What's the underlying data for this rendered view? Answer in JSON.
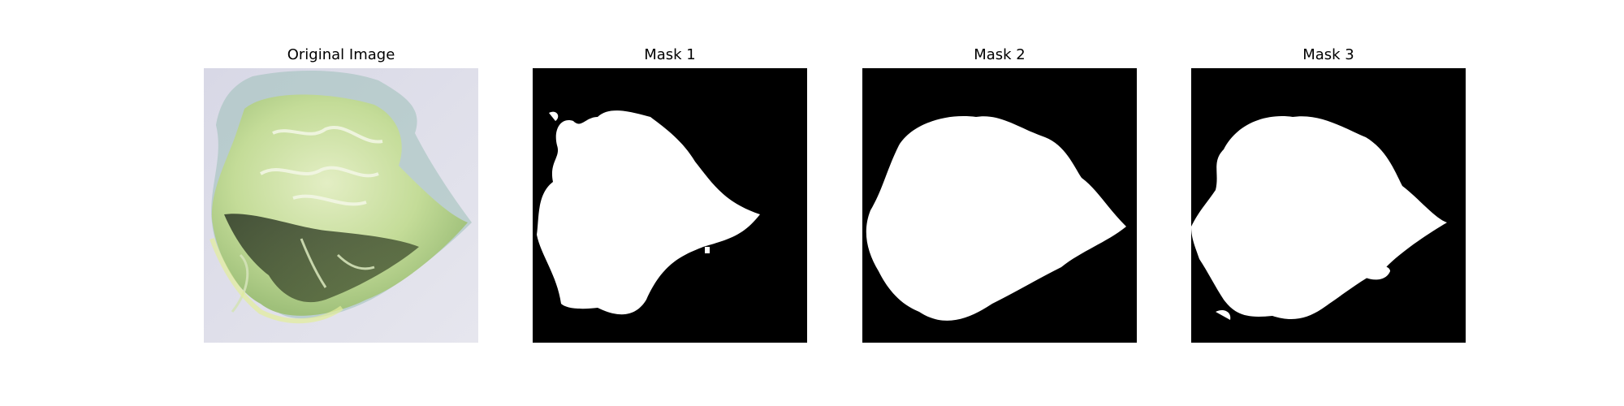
{
  "panels": [
    {
      "title": "Original Image",
      "kind": "photo",
      "icon": "cabbage-leaf-image"
    },
    {
      "title": "Mask 1",
      "kind": "mask"
    },
    {
      "title": "Mask 2",
      "kind": "mask"
    },
    {
      "title": "Mask 3",
      "kind": "mask"
    }
  ],
  "colors": {
    "mask_background": "#000000",
    "mask_foreground": "#ffffff",
    "photo_background": "#dcdce8",
    "leaf_light": "#cfe3a8",
    "leaf_mid": "#b8d48a",
    "leaf_dark": "#3c4a30",
    "leaf_teal": "#8fb7b5"
  }
}
